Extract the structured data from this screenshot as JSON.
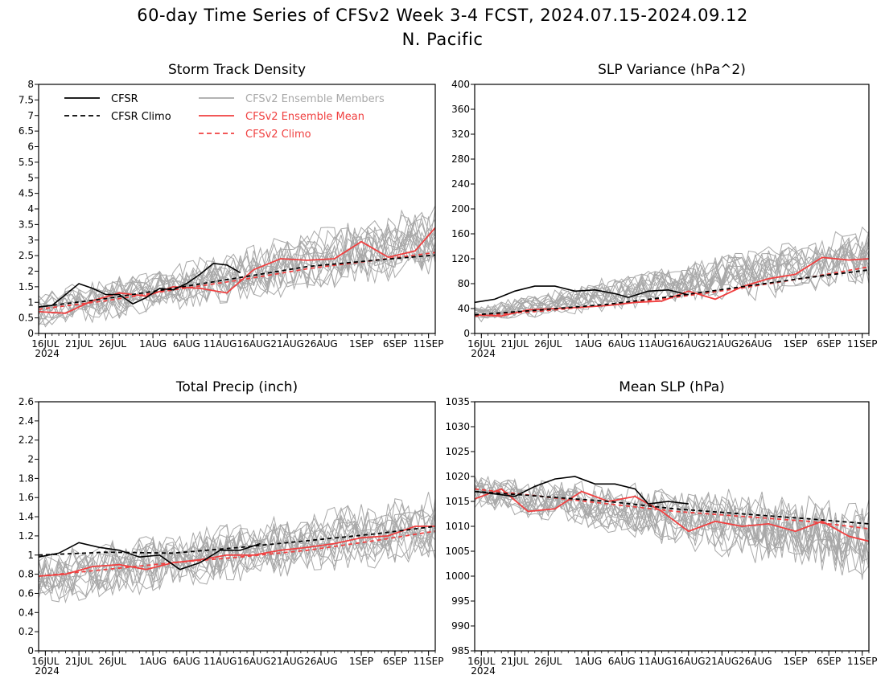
{
  "title": "60-day Time Series of CFSv2 Week 3-4 FCST, 2024.07.15-2024.09.12",
  "subtitle": "N. Pacific",
  "colors": {
    "cfsr": "#000000",
    "members": "#a8a8a8",
    "ens_mean": "#f04040",
    "cfsv2_climo": "#f04040"
  },
  "legend": {
    "placement": "top-left of first panel",
    "entries": [
      {
        "label": "CFSR",
        "style": "solid",
        "color": "#000000"
      },
      {
        "label": "CFSR Climo",
        "style": "dashed",
        "color": "#000000"
      },
      {
        "label": "CFSv2 Ensemble Members",
        "style": "solid",
        "color": "#a8a8a8"
      },
      {
        "label": "CFSv2 Ensemble Mean",
        "style": "solid",
        "color": "#f04040"
      },
      {
        "label": "CFSv2 Climo",
        "style": "dashed",
        "color": "#f04040"
      }
    ]
  },
  "chart_data": [
    {
      "type": "line",
      "title": "Storm Track Density",
      "ylim": [
        0,
        8
      ],
      "yticks": [
        0,
        0.5,
        1,
        1.5,
        2,
        2.5,
        3,
        3.5,
        4,
        4.5,
        5,
        5.5,
        6,
        6.5,
        7,
        7.5,
        8
      ],
      "xlim": [
        "2024-07-15",
        "2024-09-12"
      ],
      "xticks": [
        "16JUL",
        "21JUL",
        "26JUL",
        "1AUG",
        "6AUG",
        "11AUG",
        "16AUG",
        "21AUG",
        "26AUG",
        "1SEP",
        "6SEP",
        "11SEP"
      ],
      "xtick_year": "2024",
      "grid": false,
      "members_band": {
        "center_start": 0.75,
        "center_end": 3.05,
        "spread_start": 0.65,
        "spread_end": 1.35
      },
      "series": [
        {
          "name": "CFSR",
          "x": [
            "2024-07-15",
            "2024-07-17",
            "2024-07-19",
            "2024-07-21",
            "2024-07-23",
            "2024-07-25",
            "2024-07-27",
            "2024-07-29",
            "2024-07-31",
            "2024-08-02",
            "2024-08-04",
            "2024-08-06",
            "2024-08-08",
            "2024-08-10",
            "2024-08-12",
            "2024-08-14"
          ],
          "y": [
            0.85,
            0.9,
            1.25,
            1.6,
            1.45,
            1.25,
            1.25,
            0.95,
            1.15,
            1.45,
            1.4,
            1.6,
            1.9,
            2.25,
            2.2,
            1.95
          ]
        },
        {
          "name": "CFSR Climo",
          "x": [
            "2024-07-15",
            "2024-07-25",
            "2024-08-04",
            "2024-08-14",
            "2024-08-24",
            "2024-09-03",
            "2024-09-12"
          ],
          "y": [
            0.85,
            1.12,
            1.45,
            1.8,
            2.15,
            2.35,
            2.52
          ]
        },
        {
          "name": "CFSv2 Ensemble Mean",
          "x": [
            "2024-07-15",
            "2024-07-19",
            "2024-07-23",
            "2024-07-27",
            "2024-07-31",
            "2024-08-04",
            "2024-08-08",
            "2024-08-12",
            "2024-08-16",
            "2024-08-20",
            "2024-08-24",
            "2024-08-28",
            "2024-09-01",
            "2024-09-05",
            "2024-09-09",
            "2024-09-12"
          ],
          "y": [
            0.7,
            0.65,
            1.05,
            1.3,
            1.2,
            1.5,
            1.45,
            1.3,
            2.05,
            2.4,
            2.35,
            2.4,
            2.95,
            2.45,
            2.65,
            3.4
          ]
        },
        {
          "name": "CFSv2 Climo",
          "x": [
            "2024-07-15",
            "2024-07-25",
            "2024-08-04",
            "2024-08-14",
            "2024-08-24",
            "2024-09-03",
            "2024-09-12"
          ],
          "y": [
            0.78,
            1.05,
            1.4,
            1.72,
            2.08,
            2.35,
            2.6
          ]
        }
      ]
    },
    {
      "type": "line",
      "title": "SLP Variance (hPa^2)",
      "ylim": [
        0,
        400
      ],
      "yticks": [
        0,
        40,
        80,
        120,
        160,
        200,
        240,
        280,
        320,
        360,
        400
      ],
      "xlim": [
        "2024-07-15",
        "2024-09-12"
      ],
      "xticks": [
        "16JUL",
        "21JUL",
        "26JUL",
        "1AUG",
        "6AUG",
        "11AUG",
        "16AUG",
        "21AUG",
        "26AUG",
        "1SEP",
        "6SEP",
        "11SEP"
      ],
      "xtick_year": "2024",
      "grid": false,
      "members_band": {
        "center_start": 30,
        "center_end": 125,
        "spread_start": 15,
        "spread_end": 60
      },
      "series": [
        {
          "name": "CFSR",
          "x": [
            "2024-07-15",
            "2024-07-18",
            "2024-07-21",
            "2024-07-24",
            "2024-07-27",
            "2024-07-30",
            "2024-08-02",
            "2024-08-05",
            "2024-08-07",
            "2024-08-10",
            "2024-08-13",
            "2024-08-16"
          ],
          "y": [
            50,
            55,
            68,
            76,
            76,
            68,
            70,
            64,
            58,
            68,
            70,
            62
          ]
        },
        {
          "name": "CFSR Climo",
          "x": [
            "2024-07-15",
            "2024-07-25",
            "2024-08-04",
            "2024-08-14",
            "2024-08-24",
            "2024-09-03",
            "2024-09-12"
          ],
          "y": [
            30,
            38,
            47,
            60,
            75,
            90,
            102
          ]
        },
        {
          "name": "CFSv2 Ensemble Mean",
          "x": [
            "2024-07-15",
            "2024-07-19",
            "2024-07-23",
            "2024-07-27",
            "2024-07-31",
            "2024-08-04",
            "2024-08-08",
            "2024-08-12",
            "2024-08-16",
            "2024-08-20",
            "2024-08-24",
            "2024-08-28",
            "2024-09-01",
            "2024-09-05",
            "2024-09-09",
            "2024-09-12"
          ],
          "y": [
            30,
            28,
            38,
            40,
            42,
            45,
            50,
            52,
            68,
            55,
            75,
            88,
            95,
            122,
            118,
            120
          ]
        },
        {
          "name": "CFSv2 Climo",
          "x": [
            "2024-07-15",
            "2024-07-25",
            "2024-08-04",
            "2024-08-14",
            "2024-08-24",
            "2024-09-03",
            "2024-09-12"
          ],
          "y": [
            28,
            36,
            46,
            58,
            73,
            90,
            107
          ]
        }
      ]
    },
    {
      "type": "line",
      "title": "Total Precip (inch)",
      "ylim": [
        0,
        2.6
      ],
      "yticks": [
        0,
        0.2,
        0.4,
        0.6,
        0.8,
        1,
        1.2,
        1.4,
        1.6,
        1.8,
        2,
        2.2,
        2.4,
        2.6
      ],
      "xlim": [
        "2024-07-15",
        "2024-09-12"
      ],
      "xticks": [
        "16JUL",
        "21JUL",
        "26JUL",
        "1AUG",
        "6AUG",
        "11AUG",
        "16AUG",
        "21AUG",
        "26AUG",
        "1SEP",
        "6SEP",
        "11SEP"
      ],
      "xtick_year": "2024",
      "grid": false,
      "members_band": {
        "center_start": 0.75,
        "center_end": 1.3,
        "spread_start": 0.3,
        "spread_end": 0.4
      },
      "series": [
        {
          "name": "CFSR",
          "x": [
            "2024-07-15",
            "2024-07-18",
            "2024-07-21",
            "2024-07-24",
            "2024-07-27",
            "2024-07-30",
            "2024-08-02",
            "2024-08-05",
            "2024-08-08",
            "2024-08-11",
            "2024-08-14",
            "2024-08-17"
          ],
          "y": [
            0.98,
            1.02,
            1.13,
            1.08,
            1.05,
            0.98,
            1.0,
            0.85,
            0.92,
            1.05,
            1.05,
            1.12
          ]
        },
        {
          "name": "CFSR Climo",
          "x": [
            "2024-07-15",
            "2024-07-25",
            "2024-08-04",
            "2024-08-14",
            "2024-08-24",
            "2024-09-03",
            "2024-09-12"
          ],
          "y": [
            1.0,
            1.03,
            1.02,
            1.08,
            1.15,
            1.22,
            1.3
          ]
        },
        {
          "name": "CFSv2 Ensemble Mean",
          "x": [
            "2024-07-15",
            "2024-07-19",
            "2024-07-23",
            "2024-07-27",
            "2024-07-31",
            "2024-08-04",
            "2024-08-08",
            "2024-08-12",
            "2024-08-16",
            "2024-08-20",
            "2024-08-24",
            "2024-08-28",
            "2024-09-01",
            "2024-09-05",
            "2024-09-09",
            "2024-09-12"
          ],
          "y": [
            0.78,
            0.8,
            0.88,
            0.9,
            0.85,
            0.92,
            0.95,
            1.0,
            1.0,
            1.05,
            1.08,
            1.12,
            1.18,
            1.2,
            1.3,
            1.3
          ]
        },
        {
          "name": "CFSv2 Climo",
          "x": [
            "2024-07-15",
            "2024-07-25",
            "2024-08-04",
            "2024-08-14",
            "2024-08-24",
            "2024-09-03",
            "2024-09-12"
          ],
          "y": [
            0.78,
            0.85,
            0.92,
            0.98,
            1.05,
            1.15,
            1.25
          ]
        }
      ]
    },
    {
      "type": "line",
      "title": "Mean SLP (hPa)",
      "ylim": [
        985,
        1035
      ],
      "yticks": [
        985,
        990,
        995,
        1000,
        1005,
        1010,
        1015,
        1020,
        1025,
        1030,
        1035
      ],
      "xlim": [
        "2024-07-15",
        "2024-09-12"
      ],
      "xticks": [
        "16JUL",
        "21JUL",
        "26JUL",
        "1AUG",
        "6AUG",
        "11AUG",
        "16AUG",
        "21AUG",
        "26AUG",
        "1SEP",
        "6SEP",
        "11SEP"
      ],
      "xtick_year": "2024",
      "grid": false,
      "members_band": {
        "center_start": 1017,
        "center_end": 1007,
        "spread_start": 4,
        "spread_end": 10
      },
      "series": [
        {
          "name": "CFSR",
          "x": [
            "2024-07-15",
            "2024-07-18",
            "2024-07-21",
            "2024-07-24",
            "2024-07-27",
            "2024-07-30",
            "2024-08-02",
            "2024-08-05",
            "2024-08-08",
            "2024-08-10",
            "2024-08-13",
            "2024-08-16"
          ],
          "y": [
            1017,
            1016.5,
            1016,
            1018,
            1019.5,
            1020,
            1018.5,
            1018.5,
            1017.5,
            1014.5,
            1015,
            1014.5
          ]
        },
        {
          "name": "CFSR Climo",
          "x": [
            "2024-07-15",
            "2024-07-25",
            "2024-08-04",
            "2024-08-14",
            "2024-08-24",
            "2024-09-03",
            "2024-09-12"
          ],
          "y": [
            1017,
            1016,
            1015,
            1013.5,
            1012.5,
            1011.5,
            1010.5
          ]
        },
        {
          "name": "CFSv2 Ensemble Mean",
          "x": [
            "2024-07-15",
            "2024-07-19",
            "2024-07-23",
            "2024-07-27",
            "2024-07-31",
            "2024-08-04",
            "2024-08-08",
            "2024-08-12",
            "2024-08-16",
            "2024-08-20",
            "2024-08-24",
            "2024-08-28",
            "2024-09-01",
            "2024-09-05",
            "2024-09-09",
            "2024-09-12"
          ],
          "y": [
            1015.5,
            1017.5,
            1013,
            1013.5,
            1017,
            1015,
            1016,
            1013,
            1009,
            1011,
            1010,
            1010.5,
            1009,
            1011,
            1008,
            1007
          ]
        },
        {
          "name": "CFSv2 Climo",
          "x": [
            "2024-07-15",
            "2024-07-25",
            "2024-08-04",
            "2024-08-14",
            "2024-08-24",
            "2024-09-03",
            "2024-09-12"
          ],
          "y": [
            1017.5,
            1016,
            1014.5,
            1013,
            1012,
            1011,
            1009.5
          ]
        }
      ]
    }
  ]
}
